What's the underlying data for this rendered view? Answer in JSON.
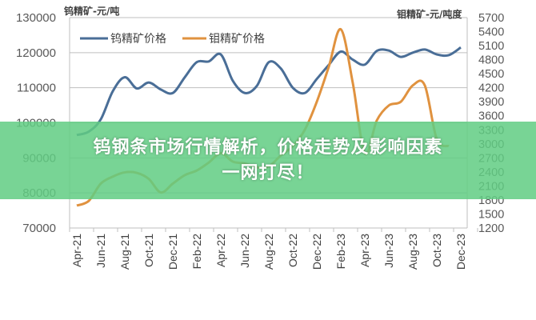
{
  "chart_data": {
    "type": "line",
    "title": "",
    "left_axis_label": "钨精矿-元/吨",
    "right_axis_label": "钼精矿-元/吨度",
    "left_ylim": [
      70000,
      130000
    ],
    "left_ticks": [
      130000,
      120000,
      110000,
      100000,
      90000,
      80000,
      70000
    ],
    "right_ylim": [
      1200,
      5700
    ],
    "right_ticks": [
      5700,
      5400,
      5100,
      4800,
      4500,
      4200,
      3900,
      3600,
      3300,
      3000,
      2700,
      2400,
      2100,
      1800,
      1500,
      1200
    ],
    "x_tick_labels": [
      "Apr-21",
      "Jun-21",
      "Aug-21",
      "Oct-21",
      "Dec-21",
      "Feb-22",
      "Apr-22",
      "Jun-22",
      "Aug-22",
      "Oct-22",
      "Dec-22",
      "Feb-23",
      "Apr-23",
      "Jun-23",
      "Aug-23",
      "Oct-23",
      "Dec-23"
    ],
    "x": [
      "Apr-21",
      "May-21",
      "Jun-21",
      "Jul-21",
      "Aug-21",
      "Sep-21",
      "Oct-21",
      "Nov-21",
      "Dec-21",
      "Jan-22",
      "Feb-22",
      "Mar-22",
      "Apr-22",
      "May-22",
      "Jun-22",
      "Jul-22",
      "Aug-22",
      "Sep-22",
      "Oct-22",
      "Nov-22",
      "Dec-22",
      "Jan-23",
      "Feb-23",
      "Mar-23",
      "Apr-23",
      "May-23",
      "Jun-23",
      "Jul-23",
      "Aug-23",
      "Sep-23",
      "Oct-23",
      "Nov-23",
      "Dec-23"
    ],
    "grid": "horizontal",
    "legend": "top-left",
    "series": [
      {
        "name": "钨精矿价格",
        "axis": "left",
        "color": "#4a6e97",
        "values": [
          96500,
          97500,
          101000,
          109000,
          113000,
          109800,
          111500,
          109500,
          108500,
          113000,
          117300,
          117500,
          119500,
          112000,
          108500,
          110500,
          117300,
          115500,
          110000,
          108500,
          112500,
          116500,
          120300,
          118000,
          116600,
          120500,
          120600,
          118800,
          120000,
          120900,
          119500,
          119300,
          121500
        ]
      },
      {
        "name": "钼精矿价格",
        "axis": "right",
        "color": "#e0923f",
        "values": [
          1680,
          1780,
          2150,
          2300,
          2390,
          2380,
          2250,
          1960,
          2150,
          2330,
          2430,
          2600,
          2800,
          2620,
          2580,
          2500,
          2520,
          2750,
          2950,
          3300,
          3900,
          4650,
          5450,
          4300,
          2800,
          3500,
          3820,
          3900,
          4250,
          4250,
          3100,
          2950,
          null
        ]
      }
    ]
  },
  "banner": {
    "line1": "钨钢条市场行情解析，价格走势及影响因素",
    "line2": "一网打尽！",
    "color": "#60cd82"
  }
}
